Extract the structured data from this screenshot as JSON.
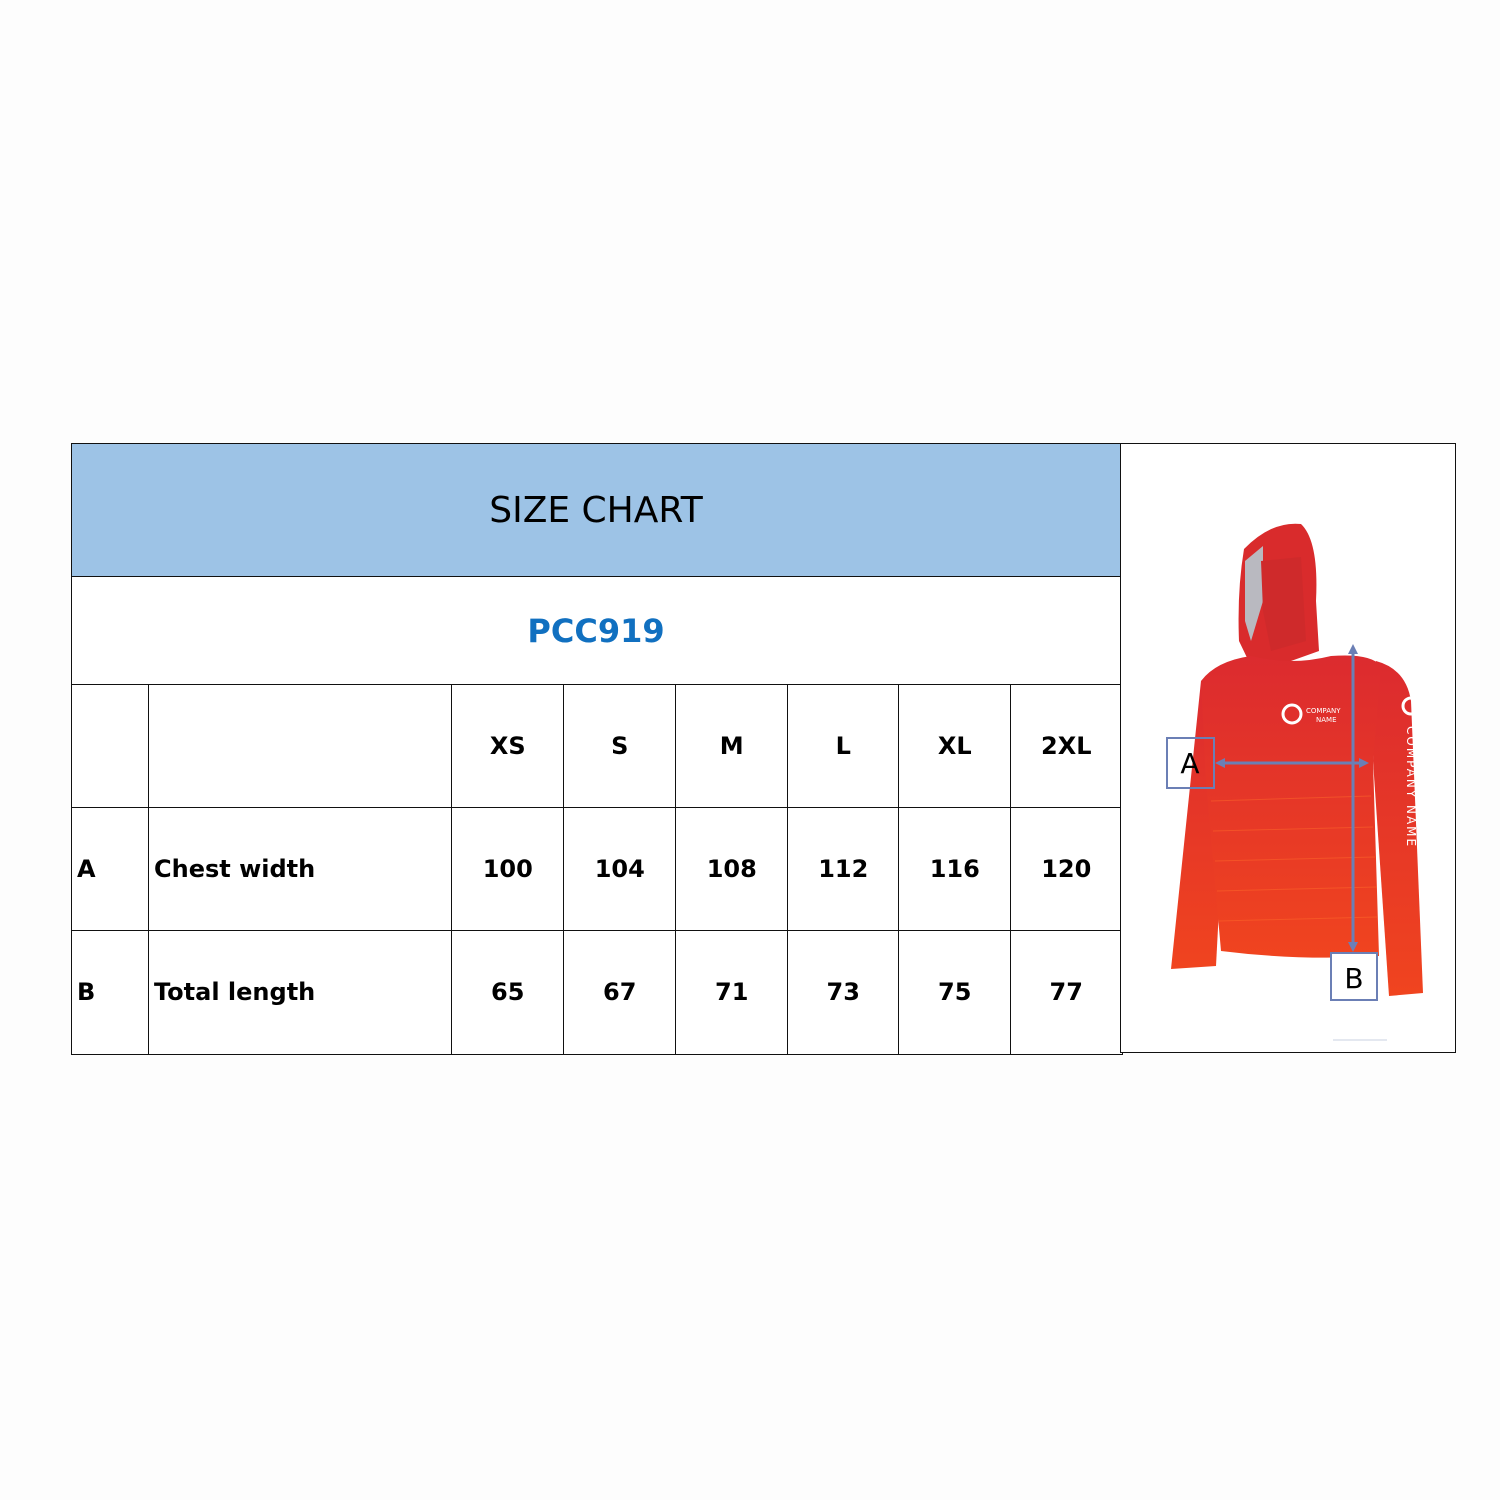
{
  "header": {
    "title": "SIZE CHART",
    "product_code": "PCC919"
  },
  "table": {
    "columns": [
      "",
      "",
      "XS",
      "S",
      "M",
      "L",
      "XL",
      "2XL"
    ],
    "rows": [
      {
        "key": "A",
        "label": "Chest width",
        "values": [
          "100",
          "104",
          "108",
          "112",
          "116",
          "120"
        ]
      },
      {
        "key": "B",
        "label": "Total length",
        "values": [
          "65",
          "67",
          "71",
          "73",
          "75",
          "77"
        ]
      }
    ]
  },
  "illustration": {
    "marker_a": "A",
    "marker_b": "B",
    "logo_text_line1": "COMPANY",
    "logo_text_line2": "NAME",
    "sleeve_text": "COMPANY NAME",
    "garment_color": "#e8372a",
    "arrow_color": "#6b7fb5"
  }
}
